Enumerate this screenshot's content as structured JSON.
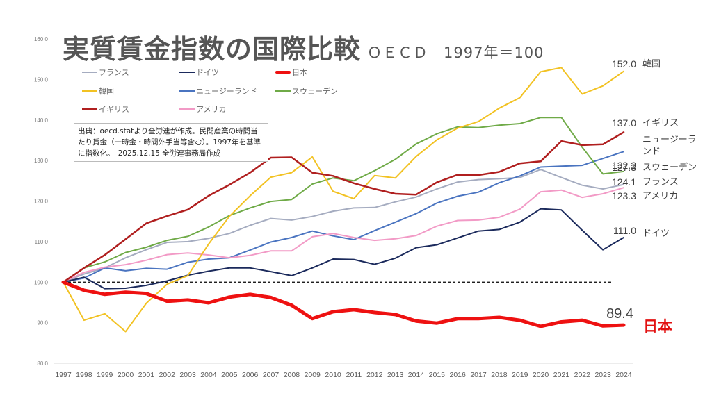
{
  "title": "実質賃金指数の国際比較",
  "subtitle": "ＯＥＣＤ　1997年＝100",
  "note": "出典：oecd.statより全労連が作成。民間産業の時間当たり賃金（一時金・時間外手当等含む）。1997年を基準に指数化。　2025.12.15 全労連事務局作成",
  "chart_data": {
    "type": "line",
    "title": "実質賃金指数の国際比較",
    "subtitle": "ＯＥＣＤ　1997年＝100",
    "xlabel": "",
    "ylabel": "",
    "ylim": [
      80,
      160
    ],
    "yticks": [
      "80.0",
      "90.0",
      "100.0",
      "110.0",
      "120.0",
      "130.0",
      "140.0",
      "150.0",
      "160.0"
    ],
    "ytick_values": [
      80,
      90,
      100,
      110,
      120,
      130,
      140,
      150,
      160
    ],
    "grid": false,
    "baseline": 100,
    "legend_position": "top-left",
    "x": [
      "1997",
      "1998",
      "1999",
      "2000",
      "2001",
      "2002",
      "2003",
      "2004",
      "2005",
      "2006",
      "2007",
      "2008",
      "2009",
      "2010",
      "2011",
      "2012",
      "2013",
      "2014",
      "2015",
      "2016",
      "2017",
      "2018",
      "2019",
      "2020",
      "2021",
      "2022",
      "2023",
      "2024"
    ],
    "series": [
      {
        "name": "フランス",
        "color": "#a5acc0",
        "width": 2,
        "values": [
          100,
          102.0,
          103.5,
          106.0,
          108.0,
          109.8,
          110.0,
          110.8,
          112.0,
          114.0,
          115.7,
          115.3,
          116.2,
          117.5,
          118.3,
          118.4,
          119.8,
          121.0,
          123.0,
          124.7,
          125.3,
          125.5,
          125.8,
          127.8,
          125.8,
          123.9,
          123.0,
          124.1
        ],
        "end_label": "124.1",
        "end_name": "フランス"
      },
      {
        "name": "ドイツ",
        "color": "#1b2a5c",
        "width": 2,
        "values": [
          100,
          101.2,
          98.4,
          98.5,
          99.2,
          100.3,
          101.7,
          102.7,
          103.5,
          103.5,
          102.6,
          101.6,
          103.5,
          105.7,
          105.6,
          104.4,
          105.9,
          108.5,
          109.2,
          110.9,
          112.6,
          113.0,
          114.8,
          118.1,
          117.8,
          112.8,
          108.0,
          111.0
        ],
        "end_label": "111.0",
        "end_name": "ドイツ"
      },
      {
        "name": "日本",
        "color": "#ee1111",
        "width": 5,
        "values": [
          100,
          98.0,
          97.0,
          97.5,
          97.2,
          95.3,
          95.6,
          94.9,
          96.3,
          97.0,
          96.2,
          94.3,
          91.0,
          92.7,
          93.2,
          92.5,
          92.0,
          90.4,
          89.9,
          91.0,
          91.0,
          91.3,
          90.6,
          89.1,
          90.2,
          90.6,
          89.2,
          89.4
        ],
        "end_label": "89.4",
        "end_name": "日本"
      },
      {
        "name": "韓国",
        "color": "#f2c223",
        "width": 2,
        "values": [
          100,
          90.6,
          92.2,
          87.8,
          94.8,
          99.5,
          101.6,
          109.4,
          116.2,
          121.3,
          125.9,
          127.0,
          130.9,
          122.4,
          120.6,
          126.3,
          125.7,
          131.0,
          135.1,
          138.0,
          139.6,
          142.9,
          145.5,
          151.9,
          152.9,
          146.4,
          148.4,
          152.0
        ],
        "end_label": "152.0",
        "end_name": "韓国"
      },
      {
        "name": "ニュージーランド",
        "color": "#4a74c0",
        "width": 2,
        "values": [
          100,
          101.0,
          103.5,
          102.8,
          103.4,
          103.2,
          104.9,
          105.7,
          106.0,
          107.9,
          109.9,
          111.0,
          112.6,
          111.4,
          110.5,
          112.7,
          114.8,
          116.9,
          119.5,
          121.2,
          122.2,
          124.5,
          126.2,
          128.4,
          128.6,
          128.8,
          130.5,
          132.2
        ],
        "end_label": "132.2",
        "end_name": "ニュージーランド"
      },
      {
        "name": "スウェーデン",
        "color": "#6faa47",
        "width": 2,
        "values": [
          100,
          103.5,
          105.0,
          107.3,
          108.6,
          110.3,
          111.3,
          113.6,
          116.4,
          118.3,
          119.9,
          120.4,
          124.2,
          125.7,
          125.0,
          127.5,
          130.3,
          134.1,
          136.6,
          138.3,
          138.1,
          138.7,
          139.1,
          140.6,
          140.6,
          133.3,
          126.7,
          127.3
        ],
        "end_label": "127.3",
        "end_name": "スウェーデン"
      },
      {
        "name": "イギリス",
        "color": "#b01f1f",
        "width": 2.5,
        "values": [
          100,
          103.5,
          106.7,
          110.6,
          114.5,
          116.3,
          117.9,
          121.3,
          124.0,
          127.0,
          130.7,
          130.8,
          127.0,
          126.2,
          124.4,
          123.0,
          121.8,
          121.6,
          124.6,
          126.5,
          126.4,
          127.2,
          129.3,
          129.8,
          134.8,
          133.8,
          134.0,
          137.0
        ],
        "end_label": "137.0",
        "end_name": "イギリス"
      },
      {
        "name": "アメリカ",
        "color": "#f29ac6",
        "width": 2,
        "values": [
          100,
          102.4,
          103.7,
          104.3,
          105.4,
          106.8,
          107.2,
          106.7,
          106.0,
          106.6,
          107.7,
          107.7,
          111.2,
          112.0,
          111.0,
          110.3,
          110.7,
          111.5,
          113.8,
          115.2,
          115.3,
          116.0,
          118.0,
          122.3,
          122.7,
          120.9,
          121.8,
          123.3
        ],
        "end_label": "123.3",
        "end_name": "アメリカ"
      }
    ],
    "end_names_display": {
      "ニュージーランド": [
        "ニュージーラ",
        "ンド"
      ]
    }
  },
  "legend": [
    {
      "name": "フランス",
      "color": "#a5acc0"
    },
    {
      "name": "ドイツ",
      "color": "#1b2a5c"
    },
    {
      "name": "日本",
      "color": "#ee1111"
    },
    {
      "name": "韓国",
      "color": "#f2c223"
    },
    {
      "name": "ニュージーランド",
      "color": "#4a74c0"
    },
    {
      "name": "スウェーデン",
      "color": "#6faa47"
    },
    {
      "name": "イギリス",
      "color": "#b01f1f"
    },
    {
      "name": "アメリカ",
      "color": "#f29ac6"
    }
  ]
}
